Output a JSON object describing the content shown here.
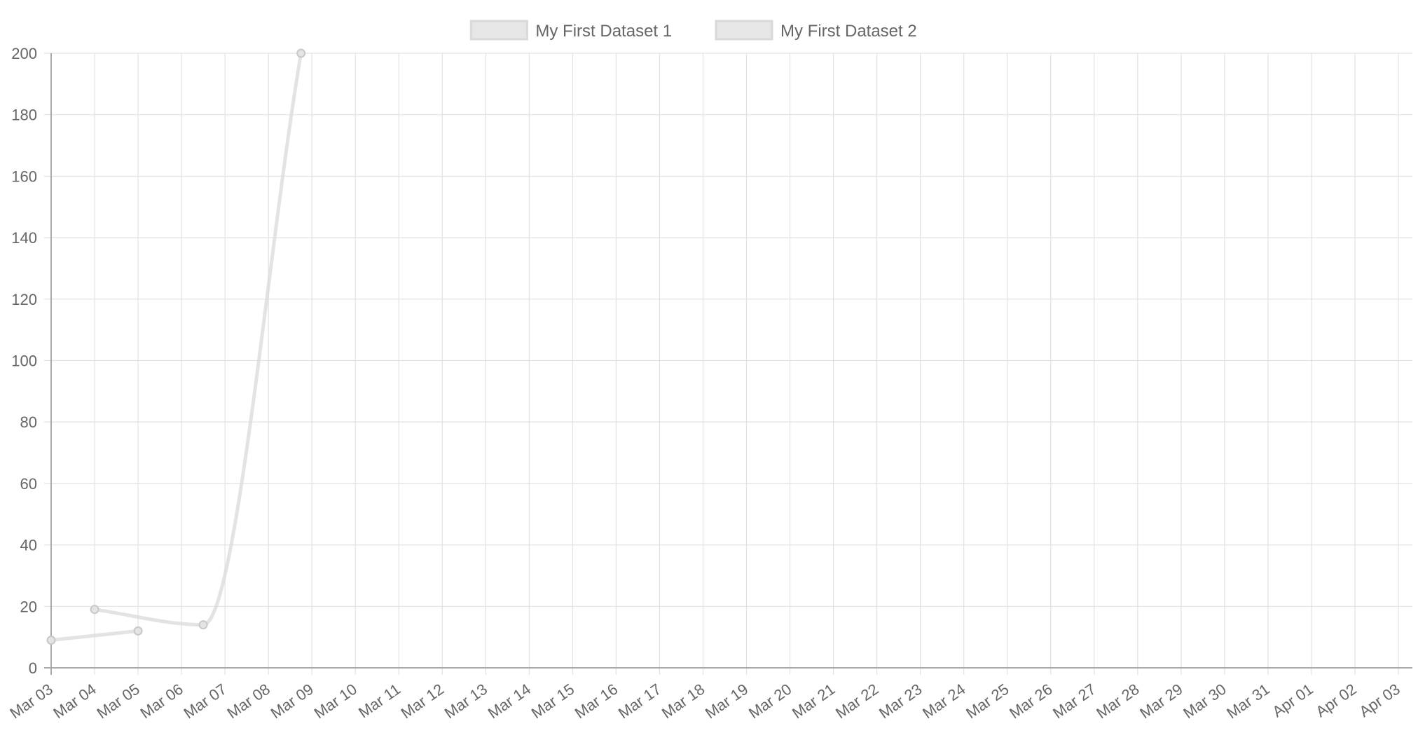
{
  "chart_data": {
    "type": "line",
    "title": "",
    "xlabel": "",
    "ylabel": "",
    "x_axis": {
      "type": "time",
      "tick_labels": [
        "Mar 03",
        "Mar 04",
        "Mar 05",
        "Mar 06",
        "Mar 07",
        "Mar 08",
        "Mar 09",
        "Mar 10",
        "Mar 11",
        "Mar 12",
        "Mar 13",
        "Mar 14",
        "Mar 15",
        "Mar 16",
        "Mar 17",
        "Mar 18",
        "Mar 19",
        "Mar 20",
        "Mar 21",
        "Mar 22",
        "Mar 23",
        "Mar 24",
        "Mar 25",
        "Mar 26",
        "Mar 27",
        "Mar 28",
        "Mar 29",
        "Mar 30",
        "Mar 31",
        "Apr 01",
        "Apr 02",
        "Apr 03"
      ],
      "range": [
        "Mar 03",
        "Apr 03"
      ]
    },
    "y_axis": {
      "ticks": [
        0,
        20,
        40,
        60,
        80,
        100,
        120,
        140,
        160,
        180,
        200
      ],
      "ylim": [
        0,
        200
      ]
    },
    "grid": true,
    "legend": {
      "position": "top-center",
      "entries": [
        "My First Dataset 1",
        "My First Dataset 2"
      ]
    },
    "series": [
      {
        "name": "My First Dataset 1",
        "color": "#d9d9d9",
        "points": [
          {
            "x": "Mar 03",
            "y": 9
          },
          {
            "x": "Mar 05",
            "y": 12
          }
        ]
      },
      {
        "name": "My First Dataset 2",
        "color": "#d9d9d9",
        "points": [
          {
            "x": "Mar 04",
            "y": 19
          },
          {
            "x": "Mar 06 12:00",
            "y": 14
          },
          {
            "x": "Mar 08 18:00",
            "y": 200
          }
        ]
      }
    ]
  }
}
